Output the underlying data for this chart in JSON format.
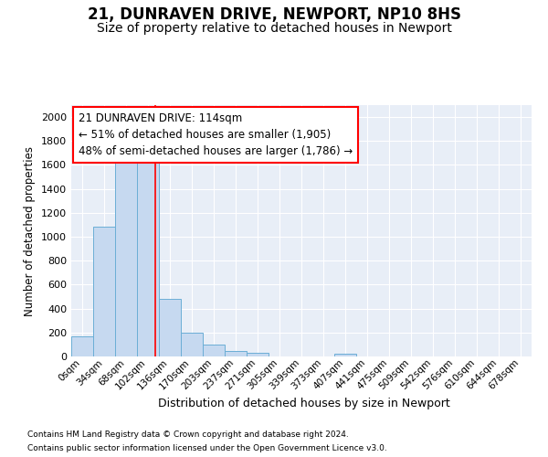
{
  "title1": "21, DUNRAVEN DRIVE, NEWPORT, NP10 8HS",
  "title2": "Size of property relative to detached houses in Newport",
  "xlabel": "Distribution of detached houses by size in Newport",
  "ylabel": "Number of detached properties",
  "bin_labels": [
    "0sqm",
    "34sqm",
    "68sqm",
    "102sqm",
    "136sqm",
    "170sqm",
    "203sqm",
    "237sqm",
    "271sqm",
    "305sqm",
    "339sqm",
    "373sqm",
    "407sqm",
    "441sqm",
    "475sqm",
    "509sqm",
    "542sqm",
    "576sqm",
    "610sqm",
    "644sqm",
    "678sqm"
  ],
  "bar_values": [
    165,
    1085,
    1625,
    1630,
    480,
    200,
    100,
    45,
    30,
    0,
    0,
    0,
    20,
    0,
    0,
    0,
    0,
    0,
    0,
    0,
    0
  ],
  "bar_color": "#c6d9f0",
  "bar_edge_color": "#6baed6",
  "vline_x": 3.35,
  "vline_color": "red",
  "annotation_text": "21 DUNRAVEN DRIVE: 114sqm\n← 51% of detached houses are smaller (1,905)\n48% of semi-detached houses are larger (1,786) →",
  "annotation_box_color": "white",
  "annotation_box_edge": "red",
  "ylim": [
    0,
    2100
  ],
  "yticks": [
    0,
    200,
    400,
    600,
    800,
    1000,
    1200,
    1400,
    1600,
    1800,
    2000
  ],
  "footer1": "Contains HM Land Registry data © Crown copyright and database right 2024.",
  "footer2": "Contains public sector information licensed under the Open Government Licence v3.0.",
  "bg_color": "#ffffff",
  "plot_bg_color": "#e8eef7",
  "grid_color": "#ffffff",
  "title1_fontsize": 12,
  "title2_fontsize": 10,
  "ann_fontsize": 8.5
}
